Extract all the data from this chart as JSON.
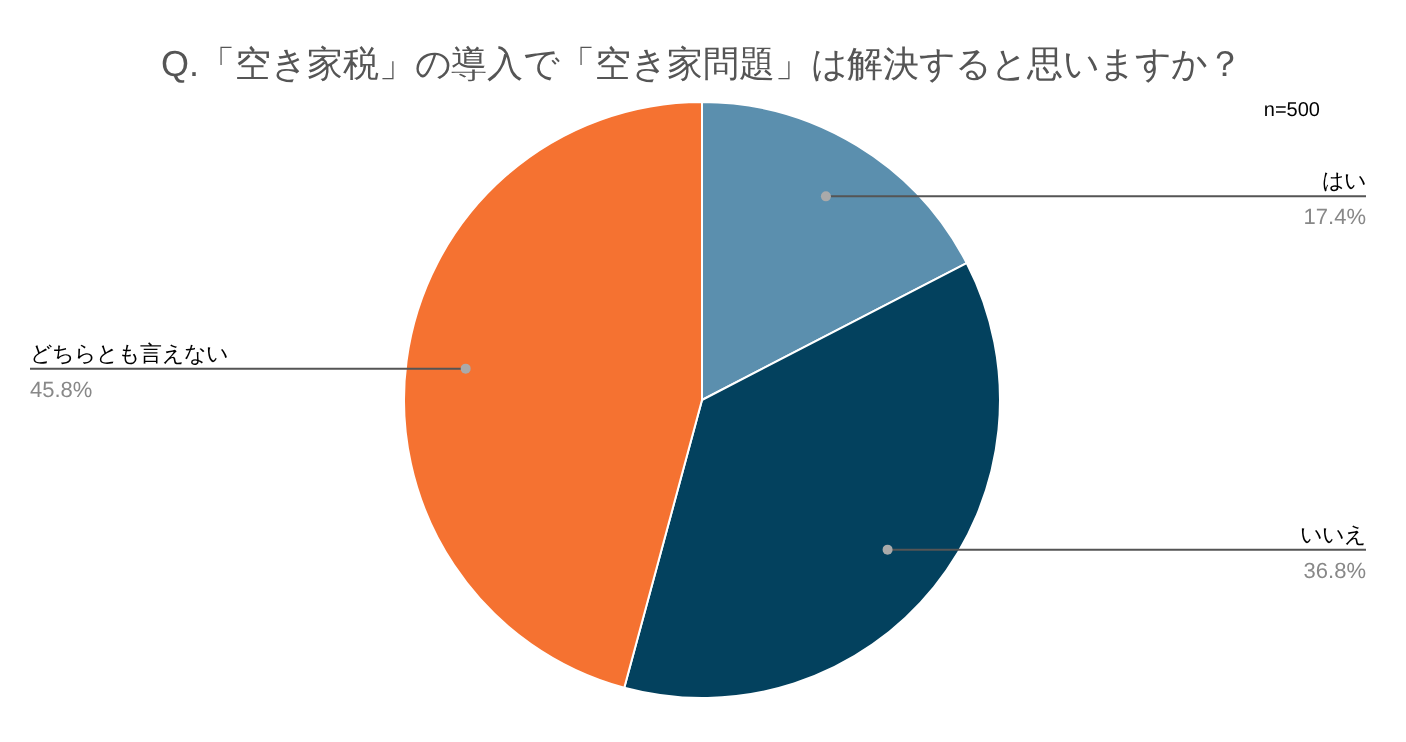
{
  "chart_data": {
    "type": "pie",
    "title": "Q.「空き家税」の導入で「空き家問題」は解決すると思いますか？",
    "annotations": [
      "n=500"
    ],
    "categories": [
      "はい",
      "いいえ",
      "どちらとも言えない"
    ],
    "values": [
      17.4,
      36.8,
      45.8
    ],
    "value_labels": [
      "17.4%",
      "36.8%",
      "45.8%"
    ],
    "colors": [
      "#5b8fae",
      "#03415e",
      "#f57231"
    ]
  }
}
